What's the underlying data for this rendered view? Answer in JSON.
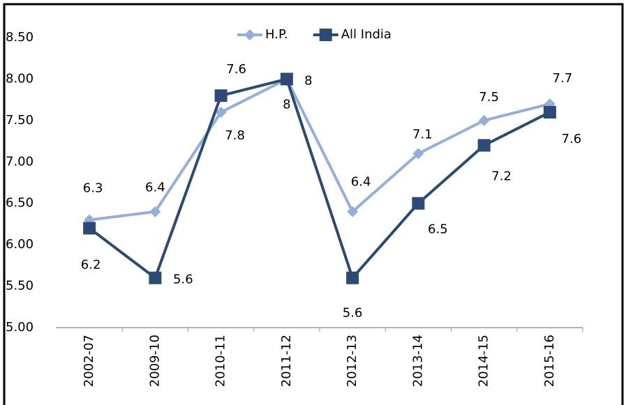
{
  "chart_data": {
    "type": "line",
    "categories": [
      "2002-07",
      "2009-10",
      "2010-11",
      "2011-12",
      "2012-13",
      "2013-14",
      "2014-15",
      "2015-16"
    ],
    "series": [
      {
        "name": "H.P.",
        "color": "#94afda",
        "marker": "diamond",
        "values": [
          6.3,
          6.4,
          7.6,
          8,
          6.4,
          7.1,
          7.5,
          7.7
        ]
      },
      {
        "name": "All India",
        "color": "#2c4a73",
        "marker": "square",
        "values": [
          6.2,
          5.6,
          7.8,
          8,
          5.6,
          6.5,
          7.2,
          7.6
        ]
      }
    ],
    "ylim": [
      5,
      8.5
    ],
    "yticks": [
      {
        "value": 5,
        "label": "5.00"
      },
      {
        "value": 5.5,
        "label": "5.50"
      },
      {
        "value": 6,
        "label": "6.00"
      },
      {
        "value": 6.5,
        "label": "6.50"
      },
      {
        "value": 7,
        "label": "7.00"
      },
      {
        "value": 7.5,
        "label": "7.50"
      },
      {
        "value": 8,
        "label": "8.00"
      },
      {
        "value": 8.5,
        "label": "8.50"
      }
    ],
    "grid": false,
    "legend": "top"
  }
}
